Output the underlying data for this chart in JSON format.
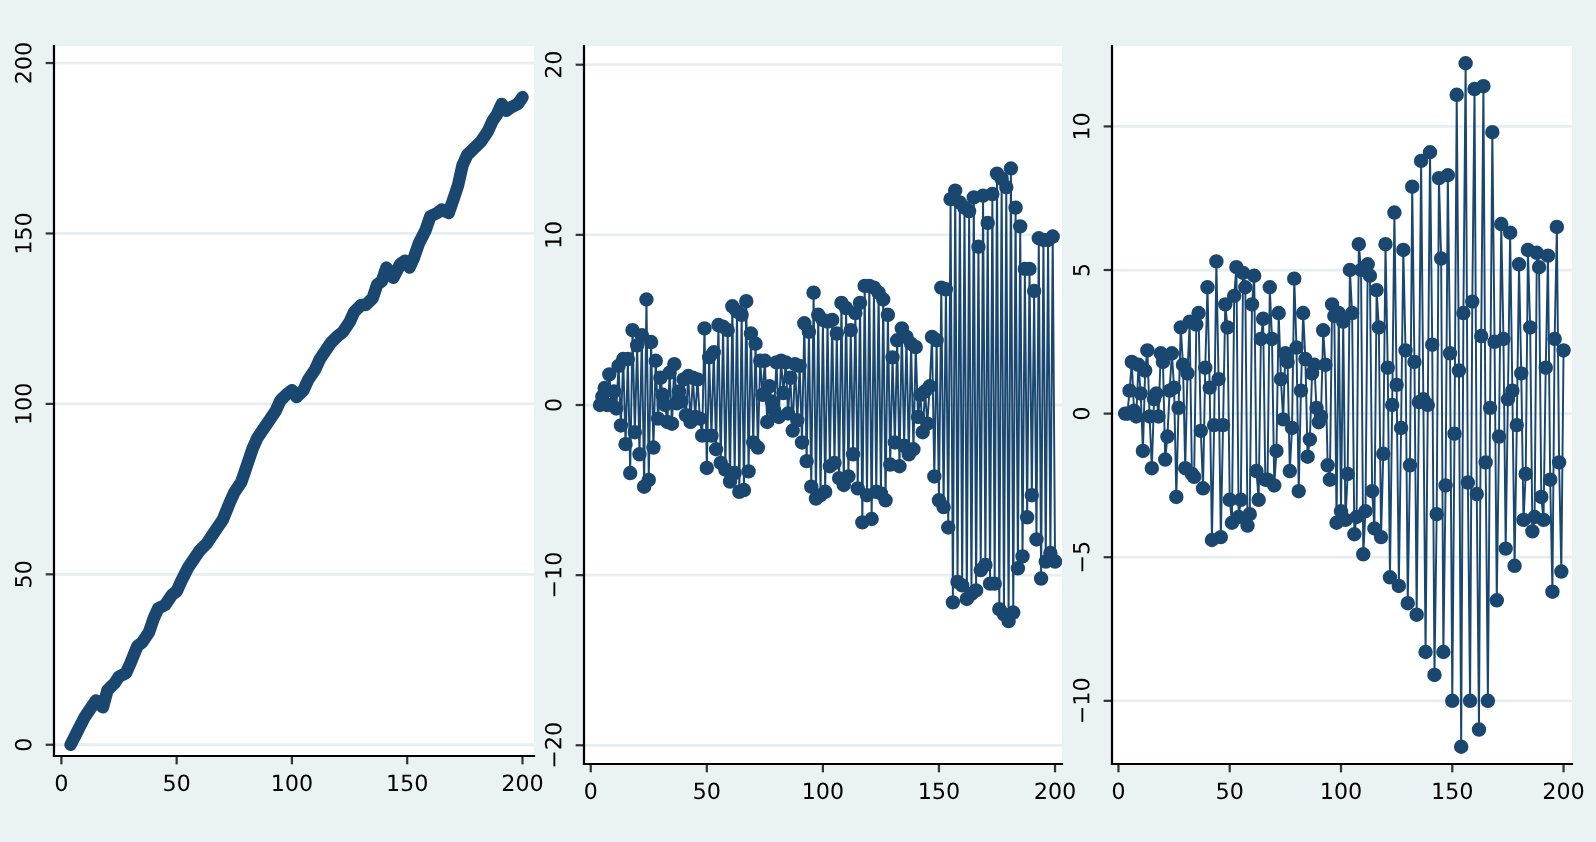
{
  "chart_data": [
    {
      "type": "line",
      "marker": "none",
      "grid": "y",
      "xlim": [
        -3.2,
        205
      ],
      "ylim": [
        -3.3,
        205
      ],
      "xticks": [
        0,
        50,
        100,
        150,
        200
      ],
      "yticks": [
        0,
        50,
        100,
        150,
        200
      ],
      "series": [
        {
          "color": "#1a476f",
          "x": [
            4,
            7,
            10,
            13,
            15,
            18,
            20,
            23,
            25,
            28,
            30,
            33,
            35,
            38,
            40,
            42,
            45,
            48,
            50,
            52,
            55,
            58,
            60,
            63,
            65,
            68,
            70,
            73,
            75,
            78,
            80,
            83,
            85,
            88,
            90,
            93,
            95,
            98,
            100,
            102,
            105,
            107,
            110,
            112,
            115,
            117,
            120,
            122,
            125,
            127,
            130,
            132,
            135,
            137,
            139,
            141,
            144,
            147,
            149,
            151,
            153,
            155,
            158,
            160,
            163,
            165,
            168,
            170,
            172,
            174,
            176,
            179,
            182,
            185,
            187,
            189,
            191,
            193,
            195,
            198,
            200
          ],
          "values": [
            0,
            4,
            8,
            11,
            13,
            11,
            16,
            18,
            20,
            21,
            24,
            29,
            30,
            33,
            37,
            40,
            41,
            44,
            45,
            48,
            52,
            55,
            57,
            59,
            61,
            64,
            66,
            71,
            74,
            77,
            81,
            87,
            90,
            93,
            95,
            98,
            101,
            103,
            104,
            102,
            104,
            107,
            110,
            113,
            116,
            118,
            120,
            121,
            124,
            127,
            129,
            129,
            131,
            135,
            136,
            140,
            137,
            141,
            142,
            140,
            143,
            147,
            151,
            155,
            156,
            157,
            156,
            160,
            164,
            170,
            173,
            175,
            177,
            180,
            183,
            185,
            188,
            186,
            187,
            188,
            190
          ]
        }
      ]
    },
    {
      "type": "line",
      "marker": "circle",
      "grid": "y",
      "xlim": [
        -2.9,
        203
      ],
      "ylim": [
        -21.1,
        21.1
      ],
      "xticks": [
        0,
        50,
        100,
        150,
        200
      ],
      "yticks": [
        {
          "value": -20,
          "label": "−20"
        },
        {
          "value": -10,
          "label": "−10"
        },
        0,
        10,
        20
      ],
      "series": [
        {
          "color": "#1a476f",
          "x": [
            4,
            5,
            6,
            7,
            8,
            9,
            10,
            11,
            12,
            13,
            14,
            15,
            16,
            17,
            18,
            19,
            20,
            21,
            22,
            23,
            24,
            25,
            26,
            27,
            28,
            29,
            30,
            31,
            32,
            33,
            34,
            35,
            36,
            37,
            38,
            39,
            40,
            41,
            42,
            43,
            44,
            45,
            46,
            47,
            48,
            49,
            50,
            51,
            52,
            53,
            54,
            55,
            56,
            57,
            58,
            59,
            60,
            61,
            62,
            63,
            64,
            65,
            66,
            67,
            68,
            69,
            70,
            71,
            72,
            73,
            74,
            75,
            76,
            77,
            78,
            79,
            80,
            81,
            82,
            83,
            84,
            85,
            86,
            87,
            88,
            89,
            90,
            91,
            92,
            93,
            94,
            95,
            96,
            97,
            98,
            99,
            100,
            101,
            102,
            103,
            104,
            105,
            106,
            107,
            108,
            109,
            110,
            111,
            112,
            113,
            114,
            115,
            116,
            117,
            118,
            119,
            120,
            121,
            122,
            123,
            124,
            125,
            126,
            127,
            128,
            129,
            130,
            131,
            132,
            133,
            134,
            135,
            136,
            137,
            138,
            139,
            140,
            141,
            142,
            143,
            144,
            145,
            146,
            147,
            148,
            149,
            150,
            151,
            152,
            153,
            154,
            155,
            156,
            157,
            158,
            159,
            160,
            161,
            162,
            163,
            164,
            165,
            166,
            167,
            168,
            169,
            170,
            171,
            172,
            173,
            174,
            175,
            176,
            177,
            178,
            179,
            180,
            181,
            182,
            183,
            184,
            185,
            186,
            187,
            188,
            189,
            190,
            191,
            192,
            193,
            194,
            195,
            196,
            197,
            198,
            199,
            200
          ],
          "values": [
            0,
            0.5,
            1,
            0,
            1.8,
            0,
            0.8,
            -0.2,
            2.3,
            -1.2,
            2.7,
            -2.3,
            2.7,
            -4,
            4.4,
            -1.6,
            3.5,
            -2.9,
            4.1,
            -4.8,
            6.2,
            -4.4,
            3.7,
            -2.5,
            2.6,
            -0.8,
            1.6,
            0.6,
            0,
            -1,
            1.9,
            -1.1,
            2.4,
            0.1,
            0.8,
            0.2,
            1.5,
            -0.6,
            1.7,
            -1,
            1.6,
            -0.7,
            1.5,
            -0.8,
            -1.8,
            4.5,
            -3.7,
            2.8,
            -1.8,
            3.1,
            -2.6,
            4.7,
            -3.4,
            4.6,
            -3.8,
            4.4,
            -4.5,
            5.8,
            -4,
            5.5,
            -5.1,
            5.3,
            -5,
            6.1,
            -3.9,
            4.2,
            -2.2,
            3.6,
            -2.5,
            2.6,
            0.6,
            2.6,
            -1,
            1.1,
            0.2,
            -0.3,
            2.5,
            -0.7,
            2.6,
            0.7,
            2.5,
            -0.5,
            1.6,
            -1.5,
            2.4,
            -0.9,
            2.3,
            -2.2,
            4.8,
            -3.3,
            4.3,
            -4.8,
            6.6,
            -5.5,
            5.3,
            -5.3,
            5,
            -5.1,
            4.9,
            -3.6,
            5,
            -3.4,
            4.2,
            -4.3,
            6,
            -4.7,
            5.7,
            -4.2,
            4.4,
            -2.9,
            5.4,
            -4.9,
            6,
            -6.9,
            7,
            -5.3,
            7,
            -6.7,
            6.9,
            -5.1,
            6.6,
            -5.2,
            6.2,
            -5.6,
            5.3,
            -3.5,
            2.8,
            -2.2,
            3.8,
            -3.6,
            4.5,
            -2.4,
            4.0,
            -2.9,
            3.6,
            -2.6,
            3.4,
            -0.7,
            0.6,
            -1.6,
            0.8,
            -1.1,
            1.1,
            4.0,
            -4.2,
            3.8,
            -5.6,
            6.9,
            -6,
            6.8,
            -7.2,
            12.1,
            -11.6,
            12.6,
            -10.4,
            11.9,
            -10.6,
            11.6,
            -11.4,
            11.4,
            -11.1,
            12.2,
            -10.9,
            9.3,
            -9.7,
            12.3,
            -9.4,
            10.7,
            -10.5,
            12.4,
            -10.5,
            13.6,
            -12,
            13.3,
            -12.3,
            12.8,
            -12.7,
            13.9,
            -12.2,
            11.6,
            -9.6,
            10.5,
            -8.9,
            8,
            -6.6,
            8,
            -5.3,
            6.7,
            -7.9,
            9.8,
            -10.2,
            9.7,
            -9.2,
            9.7,
            -8.7,
            9.9,
            -9.2
          ]
        }
      ]
    },
    {
      "type": "line",
      "marker": "circle",
      "grid": "y",
      "xlim": [
        -2.9,
        203.8
      ],
      "ylim": [
        -12.2,
        12.8
      ],
      "xticks": [
        0,
        50,
        100,
        150,
        200
      ],
      "yticks": [
        {
          "value": -10,
          "label": "−10"
        },
        {
          "value": -5,
          "label": "−5"
        },
        0,
        5,
        10
      ],
      "series": [
        {
          "color": "#1a476f",
          "x": [
            3,
            4,
            5,
            6,
            7,
            8,
            9,
            10,
            11,
            12,
            13,
            14,
            15,
            16,
            17,
            18,
            19,
            20,
            21,
            22,
            23,
            24,
            25,
            26,
            27,
            28,
            29,
            30,
            31,
            32,
            33,
            34,
            35,
            36,
            37,
            38,
            39,
            40,
            41,
            42,
            43,
            44,
            45,
            46,
            47,
            48,
            49,
            50,
            51,
            52,
            53,
            54,
            55,
            56,
            57,
            58,
            59,
            60,
            61,
            62,
            63,
            64,
            65,
            66,
            67,
            68,
            69,
            70,
            71,
            72,
            73,
            74,
            75,
            76,
            77,
            78,
            79,
            80,
            81,
            82,
            83,
            84,
            85,
            86,
            87,
            88,
            89,
            90,
            91,
            92,
            93,
            94,
            95,
            96,
            97,
            98,
            99,
            100,
            101,
            102,
            103,
            104,
            105,
            106,
            107,
            108,
            109,
            110,
            111,
            112,
            113,
            114,
            115,
            116,
            117,
            118,
            119,
            120,
            121,
            122,
            123,
            124,
            125,
            126,
            127,
            128,
            129,
            130,
            131,
            132,
            133,
            134,
            135,
            136,
            137,
            138,
            139,
            140,
            141,
            142,
            143,
            144,
            145,
            146,
            147,
            148,
            149,
            150,
            151,
            152,
            153,
            154,
            155,
            156,
            157,
            158,
            159,
            160,
            161,
            162,
            163,
            164,
            165,
            166,
            167,
            168,
            169,
            170,
            171,
            172,
            173,
            174,
            175,
            176,
            177,
            178,
            179,
            180,
            181,
            182,
            183,
            184,
            185,
            186,
            187,
            188,
            189,
            190,
            191,
            192,
            193,
            194,
            195,
            196,
            197,
            198,
            199,
            200
          ],
          "values": [
            0,
            0,
            0.8,
            1.8,
            0.1,
            -0.1,
            1.7,
            0.7,
            -1.3,
            1.5,
            2.2,
            -0.1,
            -1.9,
            0.5,
            0.7,
            -0.1,
            2.1,
            1.8,
            -1.6,
            -0.8,
            0.8,
            2.1,
            0.9,
            -2.9,
            0.2,
            3,
            1.7,
            -1.9,
            1.4,
            3.2,
            -2.1,
            -2.2,
            3.1,
            3.5,
            -0.6,
            -2.6,
            1.6,
            4.4,
            0.9,
            -4.4,
            -0.4,
            5.3,
            1.2,
            -4.3,
            -0.4,
            3.8,
            3,
            -3,
            -3.8,
            4.1,
            5.1,
            -3.6,
            -3,
            4.9,
            4.4,
            -3.9,
            -3.5,
            3.8,
            4.8,
            -2,
            -3,
            2.6,
            3.3,
            -2.3,
            -2.3,
            4.4,
            2.6,
            -2.5,
            -1.3,
            3.5,
            1.2,
            -0.2,
            2.1,
            1.8,
            -2,
            -0.5,
            4.7,
            2.3,
            -2.7,
            0.8,
            3.5,
            1.9,
            -1.5,
            -0.9,
            1.4,
            1.7,
            0.2,
            -0.3,
            -0.1,
            2.9,
            1.7,
            -1.8,
            -2.3,
            3.8,
            3.4,
            -3.8,
            3.5,
            -3.4,
            3.2,
            -3.7,
            -2.1,
            5,
            3.5,
            -4.2,
            -3.6,
            5.9,
            5,
            -4.9,
            -3.4,
            5.2,
            4.8,
            -2.7,
            -4.0,
            4.3,
            3,
            -4.3,
            -1.4,
            5.9,
            1.6,
            -5.7,
            0.3,
            7,
            1,
            -6,
            -0.5,
            5.7,
            2.2,
            -6.6,
            -1.8,
            7.9,
            1.8,
            -7,
            0.4,
            8.8,
            0.5,
            -8.3,
            0.3,
            9.1,
            2.4,
            -9.1,
            -3.5,
            8.2,
            5.4,
            -8.3,
            -2.5,
            8.3,
            2.1,
            -10,
            -0.7,
            11.1,
            1.5,
            -11.6,
            3.5,
            12.2,
            -2.4,
            -10,
            3.9,
            11.3,
            -2.8,
            -11,
            2.7,
            11.4,
            -1.7,
            -10,
            0.2,
            9.8,
            2.5,
            -6.5,
            -0.8,
            6.6,
            2.6,
            -4.7,
            0.5,
            6.3,
            0.8,
            -5.3,
            -0.4,
            5.2,
            1.4,
            -3.7,
            -2.1,
            5.7,
            3,
            -4.1,
            -3.6,
            5.6,
            5.1,
            -2.9,
            -3.7,
            1.6,
            5.5,
            -2.3,
            -6.2,
            2.6,
            6.5,
            -1.7,
            -5.5,
            2.2
          ]
        }
      ]
    }
  ]
}
